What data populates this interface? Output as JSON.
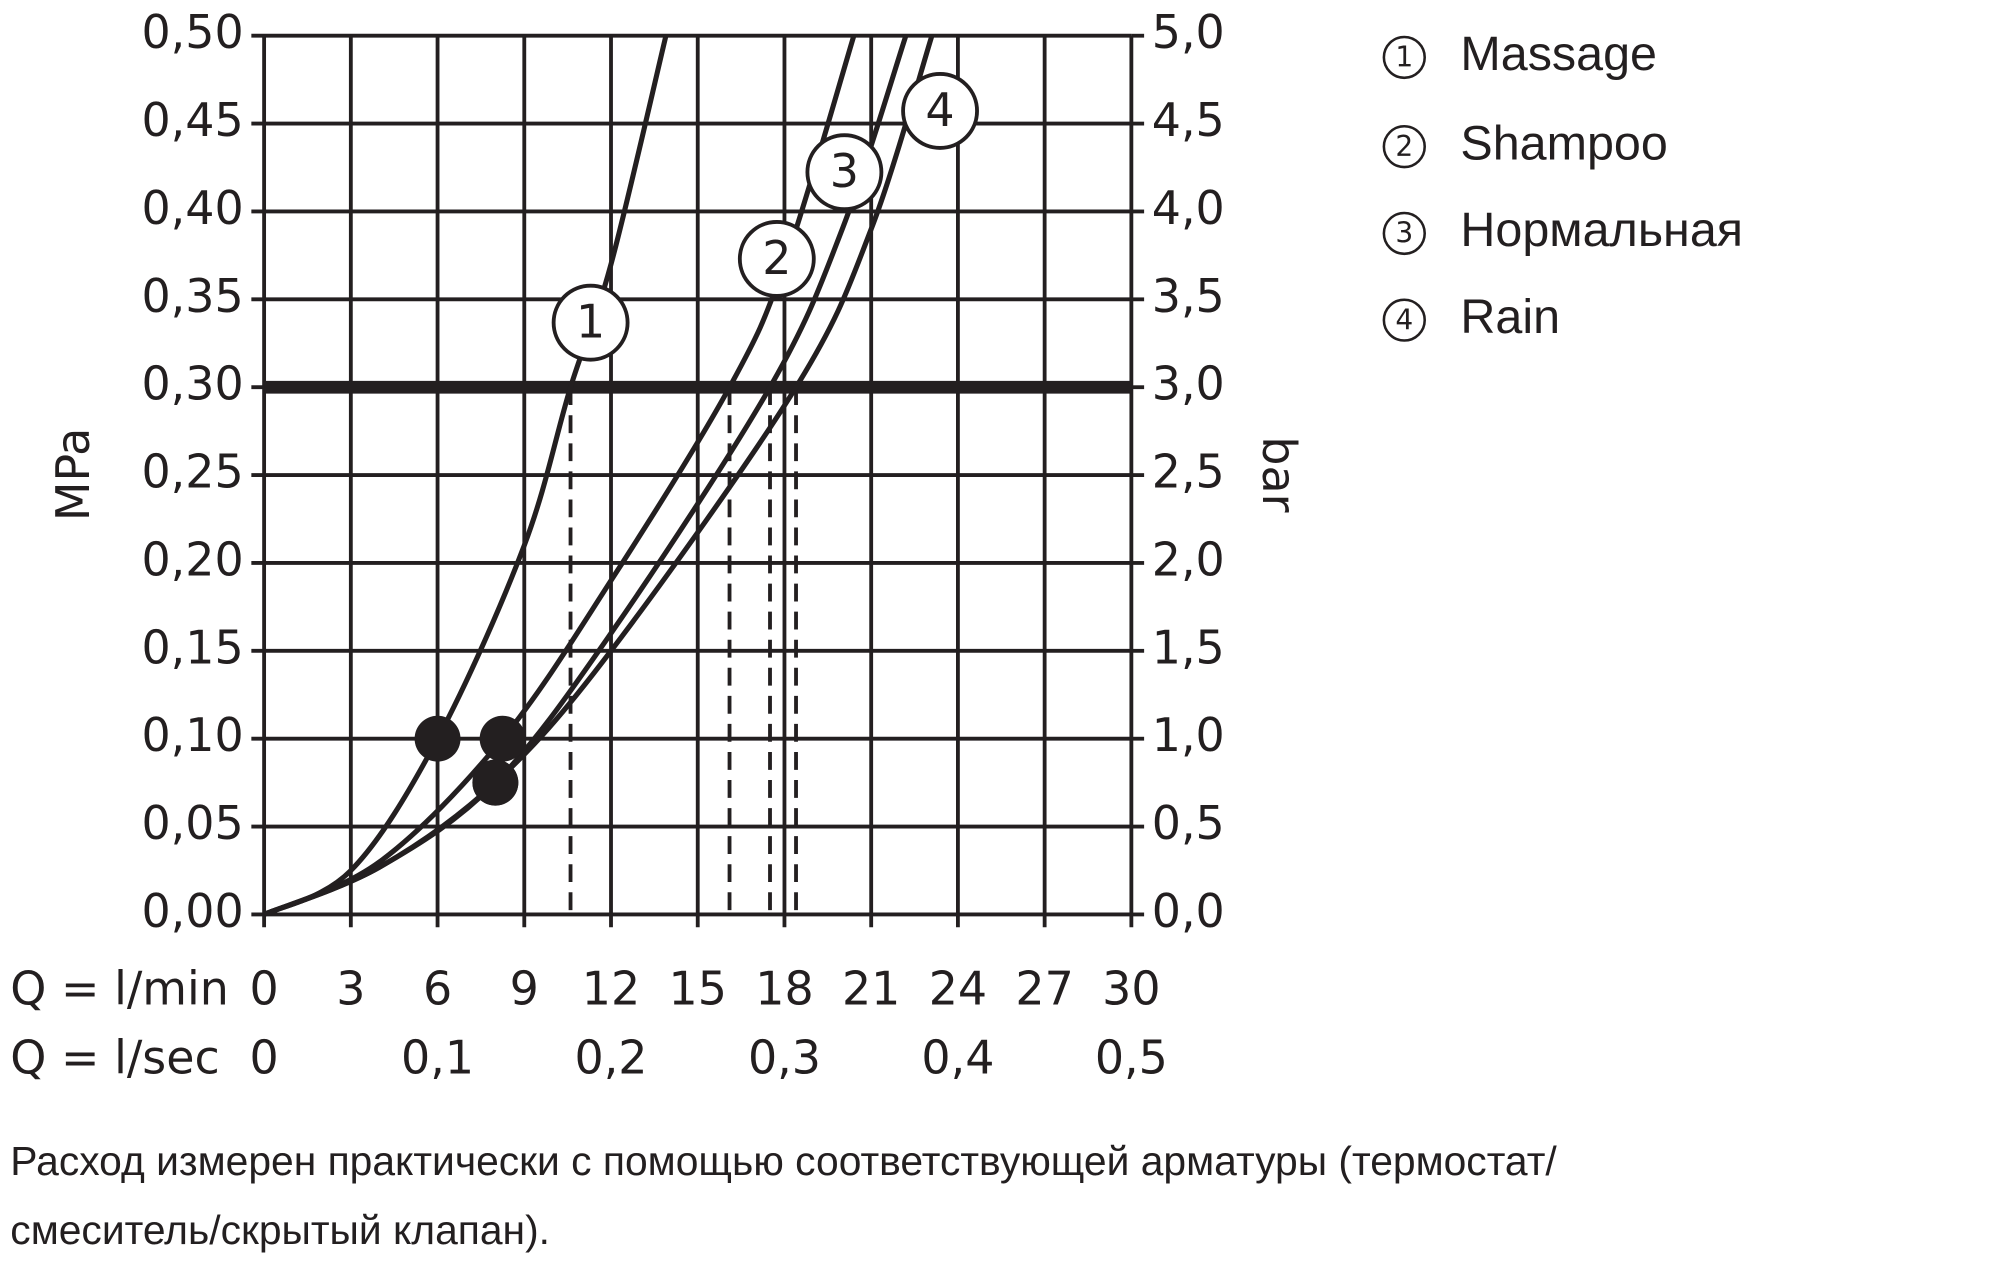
{
  "chart_data": {
    "type": "line",
    "xlabel": "Q = l/min",
    "x2label": "Q = l/sec",
    "ylabel": "MPa",
    "y2label": "bar",
    "xlim": [
      0,
      30
    ],
    "xticks": [
      0,
      3,
      6,
      9,
      12,
      15,
      18,
      21,
      24,
      27,
      30
    ],
    "x2lim": [
      0,
      0.5
    ],
    "x2ticks": [
      0,
      {
        "value": 0.1,
        "label": "0,1"
      },
      {
        "value": 0.2,
        "label": "0,2"
      },
      {
        "value": 0.3,
        "label": "0,3"
      },
      {
        "value": 0.4,
        "label": "0,4"
      },
      {
        "value": 0.5,
        "label": "0,5"
      }
    ],
    "ylim": [
      0,
      0.5
    ],
    "yticks": [
      {
        "value": 0,
        "label": "0,00"
      },
      {
        "value": 0.05,
        "label": "0,05"
      },
      {
        "value": 0.1,
        "label": "0,10"
      },
      {
        "value": 0.15,
        "label": "0,15"
      },
      {
        "value": 0.2,
        "label": "0,20"
      },
      {
        "value": 0.25,
        "label": "0,25"
      },
      {
        "value": 0.3,
        "label": "0,30"
      },
      {
        "value": 0.35,
        "label": "0,35"
      },
      {
        "value": 0.4,
        "label": "0,40"
      },
      {
        "value": 0.45,
        "label": "0,45"
      },
      {
        "value": 0.5,
        "label": "0,50"
      }
    ],
    "y2lim": [
      0,
      5
    ],
    "y2ticks": [
      {
        "value": 0,
        "label": "0,0"
      },
      {
        "value": 0.5,
        "label": "0,5"
      },
      {
        "value": 1,
        "label": "1,0"
      },
      {
        "value": 1.5,
        "label": "1,5"
      },
      {
        "value": 2,
        "label": "2,0"
      },
      {
        "value": 2.5,
        "label": "2,5"
      },
      {
        "value": 3,
        "label": "3,0"
      },
      {
        "value": 3.5,
        "label": "3,5"
      },
      {
        "value": 4,
        "label": "4,0"
      },
      {
        "value": 4.5,
        "label": "4,5"
      },
      {
        "value": 5,
        "label": "5,0"
      }
    ],
    "grid": true,
    "reference_line": 0.3,
    "color": "#231f20",
    "series": [
      {
        "name": "Massage",
        "label": "1",
        "x": [
          0,
          3,
          6,
          9,
          10.6,
          12,
          13.9
        ],
        "values": [
          0,
          0.025,
          0.1,
          0.21,
          0.3,
          0.37,
          0.5
        ],
        "point": {
          "x": 6,
          "value": 0.1
        }
      },
      {
        "name": "Shampoo",
        "label": "2",
        "x": [
          0,
          4,
          8.25,
          12,
          16.1,
          18,
          20.4
        ],
        "values": [
          0,
          0.03,
          0.1,
          0.19,
          0.3,
          0.37,
          0.5
        ],
        "point": {
          "x": 8.25,
          "value": 0.1
        }
      },
      {
        "name": "Нормальная",
        "label": "3",
        "x": [
          0,
          4,
          8,
          12,
          17.5,
          20,
          22.2
        ],
        "values": [
          0,
          0.027,
          0.075,
          0.16,
          0.3,
          0.39,
          0.5
        ],
        "point": {
          "x": 8,
          "value": 0.075
        }
      },
      {
        "name": "Rain",
        "label": "4",
        "x": [
          0,
          4,
          8,
          12,
          18.4,
          21,
          23.1
        ],
        "values": [
          0,
          0.027,
          0.075,
          0.15,
          0.3,
          0.39,
          0.5
        ],
        "point": {
          "x": 8,
          "value": 0.075
        }
      }
    ],
    "notes": [
      "Расход измерен практически с помощью соответствующей арматуры (термостат/",
      "смеситель/скрытый клапан)."
    ]
  }
}
